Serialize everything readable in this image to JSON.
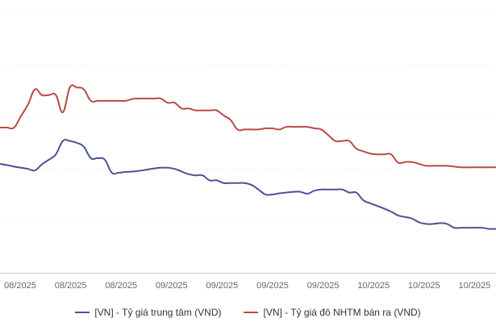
{
  "chart_data": {
    "type": "line",
    "title": "",
    "xlabel": "",
    "ylabel": "",
    "grid": true,
    "legend_position": "bottom-center",
    "x_tick_labels": [
      "08/2025",
      "08/2025",
      "08/2025",
      "09/2025",
      "09/2025",
      "09/2025",
      "09/2025",
      "10/2025",
      "10/2025",
      "10/2025"
    ],
    "series": [
      {
        "name": "[VN] - Tỷ giá trung tâm (VND)",
        "color": "#4a5296",
        "values": [
          26285,
          26282,
          26278,
          26275,
          26272,
          26268,
          26284,
          26296,
          26310,
          26345,
          26345,
          26340,
          26330,
          26300,
          26300,
          26296,
          26262,
          26262,
          26264,
          26265,
          26267,
          26270,
          26273,
          26275,
          26275,
          26272,
          26265,
          26258,
          26255,
          26255,
          26242,
          26242,
          26235,
          26235,
          26235,
          26235,
          26230,
          26218,
          26205,
          26205,
          26208,
          26210,
          26212,
          26212,
          26207,
          26215,
          26218,
          26218,
          26218,
          26218,
          26210,
          26210,
          26190,
          26182,
          26175,
          26168,
          26160,
          26150,
          26146,
          26142,
          26132,
          26128,
          26128,
          26130,
          26128,
          26118,
          26118,
          26118,
          26118,
          26118,
          26115,
          26115
        ]
      },
      {
        "name": "[VN] - Tỷ giá đô NHTM bán ra (VND)",
        "color": "#b84a46",
        "values": [
          26380,
          26380,
          26380,
          26410,
          26440,
          26480,
          26465,
          26465,
          26465,
          26420,
          26485,
          26485,
          26480,
          26450,
          26450,
          26450,
          26450,
          26450,
          26450,
          26455,
          26456,
          26456,
          26456,
          26456,
          26445,
          26445,
          26430,
          26430,
          26425,
          26425,
          26425,
          26425,
          26412,
          26400,
          26375,
          26375,
          26375,
          26375,
          26378,
          26378,
          26375,
          26382,
          26382,
          26382,
          26382,
          26378,
          26375,
          26360,
          26345,
          26345,
          26345,
          26325,
          26318,
          26312,
          26310,
          26310,
          26310,
          26288,
          26290,
          26290,
          26285,
          26280,
          26280,
          26280,
          26280,
          26278,
          26276,
          26276,
          26276,
          26276,
          26276,
          26276
        ]
      }
    ],
    "ylim": [
      26000,
      26680
    ]
  }
}
